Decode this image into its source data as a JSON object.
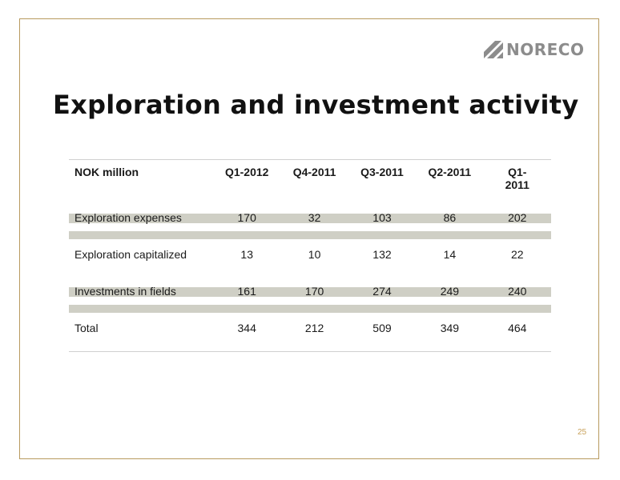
{
  "logo": {
    "text": "NORECO",
    "icon": "stripe-mark-icon"
  },
  "title": "Exploration and investment activity",
  "table": {
    "headers": [
      "NOK million",
      "Q1-2012",
      "Q4-2011",
      "Q3-2011",
      "Q2-2011",
      "Q1-\n2011"
    ],
    "rows": [
      {
        "label": "Exploration expenses",
        "values": [
          "170",
          "32",
          "103",
          "86",
          "202"
        ]
      },
      {
        "label": "Exploration capitalized",
        "values": [
          "13",
          "10",
          "132",
          "14",
          "22"
        ]
      },
      {
        "label": "Investments in fields",
        "values": [
          "161",
          "170",
          "274",
          "249",
          "240"
        ]
      },
      {
        "label": "Total",
        "values": [
          "344",
          "212",
          "509",
          "349",
          "464"
        ]
      }
    ]
  },
  "page_number": "25",
  "colors": {
    "frame": "#b89a5e",
    "page_number": "#c8a15a",
    "logo": "#8c8c8c"
  }
}
